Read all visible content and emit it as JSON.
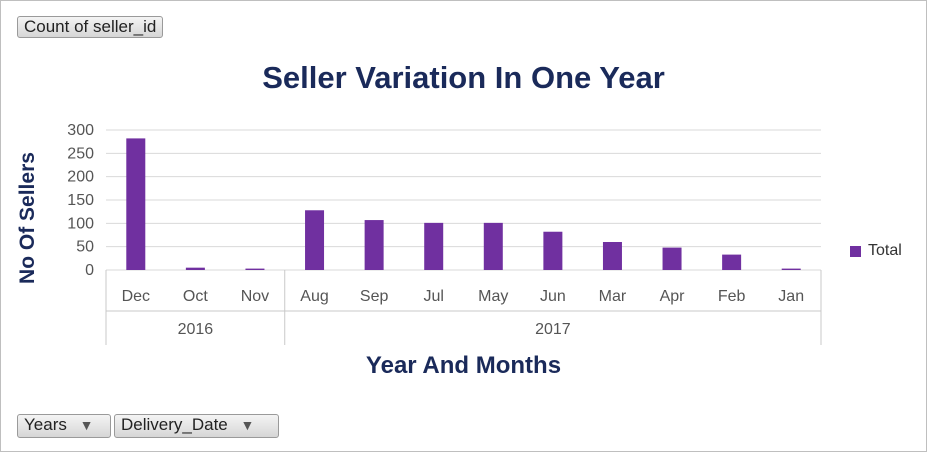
{
  "pivot_buttons": {
    "value_field": "Count of seller_id",
    "row_field_1": "Years",
    "row_field_2": "Delivery_Date"
  },
  "legend": {
    "label": "Total"
  },
  "colors": {
    "bar": "#7030a0",
    "title": "#1a2a5a",
    "grid": "#d9d9d9"
  },
  "icons": {
    "filter": "funnel-icon"
  },
  "chart_data": {
    "type": "bar",
    "title": "Seller Variation In One Year",
    "xlabel": "Year And Months",
    "ylabel": "No Of Sellers",
    "ylim": [
      0,
      300
    ],
    "yticks": [
      0,
      50,
      100,
      150,
      200,
      250,
      300
    ],
    "grid": true,
    "legend_position": "right",
    "groups": [
      {
        "label": "2016",
        "categories": [
          "Dec",
          "Oct",
          "Nov"
        ]
      },
      {
        "label": "2017",
        "categories": [
          "Aug",
          "Sep",
          "Jul",
          "May",
          "Jun",
          "Mar",
          "Apr",
          "Feb",
          "Jan"
        ]
      }
    ],
    "categories": [
      "Dec",
      "Oct",
      "Nov",
      "Aug",
      "Sep",
      "Jul",
      "May",
      "Jun",
      "Mar",
      "Apr",
      "Feb",
      "Jan"
    ],
    "series": [
      {
        "name": "Total",
        "values": [
          282,
          5,
          3,
          128,
          107,
          101,
          101,
          82,
          60,
          48,
          33,
          3
        ]
      }
    ]
  }
}
